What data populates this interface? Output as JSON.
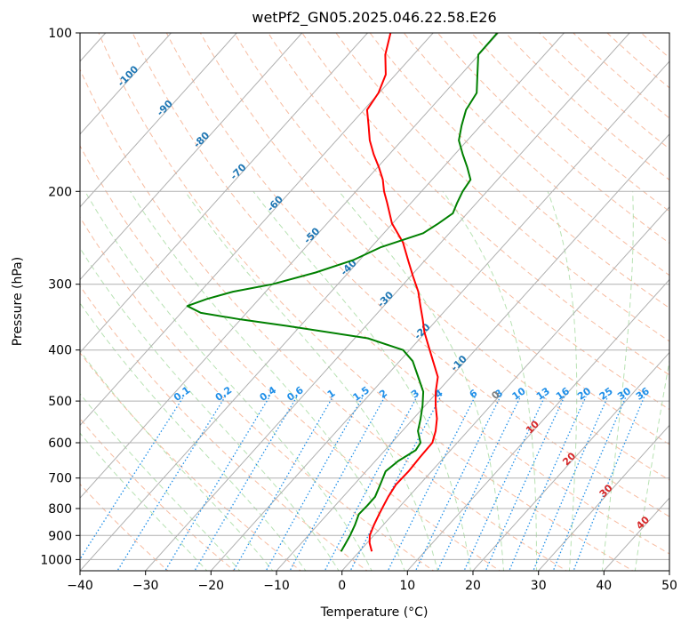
{
  "chart_data": {
    "type": "line",
    "subtype": "skew-t log-p",
    "title": "wetPf2_GN05.2025.046.22.58.E26",
    "xlabel": "Temperature (°C)",
    "ylabel": "Pressure (hPa)",
    "xlim": [
      -40,
      50
    ],
    "ylim": [
      1050,
      100
    ],
    "y_scale": "log",
    "grid": true,
    "x_ticks": [
      "−40",
      "−30",
      "−20",
      "−10",
      "0",
      "10",
      "20",
      "30",
      "40",
      "50"
    ],
    "x_tick_values": [
      -40,
      -30,
      -20,
      -10,
      0,
      10,
      20,
      30,
      40,
      50
    ],
    "y_ticks": [
      "100",
      "200",
      "300",
      "400",
      "500",
      "600",
      "700",
      "800",
      "900",
      "1000"
    ],
    "y_tick_values": [
      100,
      200,
      300,
      400,
      500,
      600,
      700,
      800,
      900,
      1000
    ],
    "series": [
      {
        "color": "#ff0000",
        "p": [
          965,
          930,
          900,
          860,
          820,
          790,
          760,
          720,
          680,
          640,
          600,
          570,
          540,
          510,
          480,
          450,
          420,
          390,
          370,
          350,
          330,
          310,
          290,
          270,
          250,
          230,
          210,
          200,
          190,
          180,
          170,
          160,
          150,
          140,
          130,
          120,
          110,
          100
        ],
        "t": [
          1.9,
          0.4,
          -0.6,
          -1.4,
          -2.1,
          -2.6,
          -3.1,
          -3.6,
          -3.5,
          -3.7,
          -3.8,
          -4.9,
          -6.4,
          -8.4,
          -10.3,
          -12.0,
          -14.9,
          -18.0,
          -20.2,
          -22.2,
          -24.4,
          -26.7,
          -29.6,
          -32.6,
          -35.8,
          -40.1,
          -43.7,
          -45.7,
          -47.5,
          -49.8,
          -52.4,
          -54.9,
          -57.1,
          -59.5,
          -60.1,
          -61.5,
          -64.3,
          -66.5
        ]
      },
      {
        "color": "#008000",
        "p": [
          965,
          940,
          900,
          860,
          820,
          790,
          760,
          720,
          680,
          650,
          620,
          600,
          570,
          540,
          510,
          480,
          450,
          420,
          400,
          380,
          360,
          350,
          340,
          330,
          320,
          310,
          300,
          285,
          270,
          255,
          240,
          230,
          220,
          210,
          200,
          190,
          180,
          170,
          160,
          150,
          140,
          130,
          120,
          110,
          100
        ],
        "t": [
          -2.8,
          -3.1,
          -3.6,
          -4.3,
          -5.2,
          -5.1,
          -5.1,
          -6.0,
          -7.0,
          -6.5,
          -5.3,
          -5.6,
          -7.6,
          -8.9,
          -10.4,
          -12.2,
          -15.0,
          -18.0,
          -21.0,
          -28.0,
          -42.0,
          -50.0,
          -57.0,
          -60.0,
          -58.0,
          -55.0,
          -50.0,
          -45.0,
          -41.0,
          -38.5,
          -34.0,
          -33.0,
          -32.2,
          -33.0,
          -33.7,
          -34.1,
          -36.3,
          -38.8,
          -41.3,
          -42.9,
          -44.4,
          -45.1,
          -47.5,
          -50.1,
          -50.2
        ]
      }
    ],
    "isotherm_labels": [
      "-100",
      "-90",
      "-80",
      "-70",
      "-60",
      "-50",
      "-40",
      "-30",
      "-20",
      "-10",
      "0",
      "10",
      "20",
      "30",
      "40"
    ],
    "isotherm_label_values": [
      -100,
      -90,
      -80,
      -70,
      -60,
      -50,
      -40,
      -30,
      -20,
      -10,
      0,
      10,
      20,
      30,
      40
    ],
    "mixing_ratio_labels": [
      "0.1",
      "0.2",
      "0.4",
      "0.6",
      "1",
      "1.5",
      "2",
      "3",
      "4",
      "6",
      "8",
      "10",
      "13",
      "16",
      "20",
      "25",
      "30",
      "36"
    ],
    "mixing_ratio_values": [
      0.1,
      0.2,
      0.4,
      0.6,
      1,
      1.5,
      2,
      3,
      4,
      6,
      8,
      10,
      13,
      16,
      20,
      25,
      30,
      36
    ],
    "colors": {
      "temperature": "#ff0000",
      "dewpoint": "#008000",
      "isotherm": "#b0b0b0",
      "dry_adiabat": "#f4a582",
      "moist_adiabat": "#a6dba0",
      "mixing_ratio": "#1f8fe8",
      "isobar": "#b0b0b0",
      "label_blue": "#1f77b4",
      "label_red": "#d62728",
      "label_gray": "#7f7f7f"
    }
  }
}
